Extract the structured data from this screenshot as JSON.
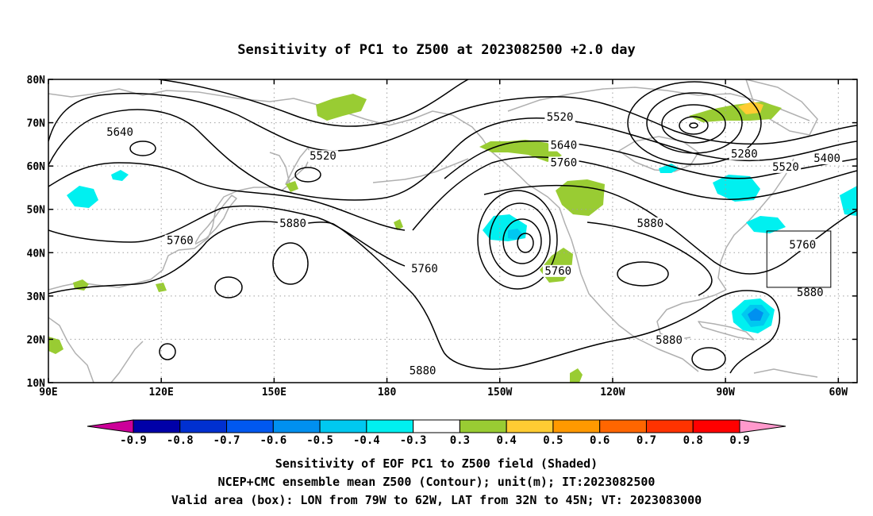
{
  "title": "Sensitivity of PC1 to Z500 at 2023082500 +2.0 day",
  "map": {
    "lon_range": [
      90,
      305
    ],
    "lat_range": [
      10,
      80
    ],
    "lat_ticks": [
      {
        "lat": 80,
        "label": "80N"
      },
      {
        "lat": 70,
        "label": "70N"
      },
      {
        "lat": 60,
        "label": "60N"
      },
      {
        "lat": 50,
        "label": "50N"
      },
      {
        "lat": 40,
        "label": "40N"
      },
      {
        "lat": 30,
        "label": "30N"
      },
      {
        "lat": 20,
        "label": "20N"
      },
      {
        "lat": 10,
        "label": "10N"
      }
    ],
    "lon_ticks": [
      {
        "lon": 90,
        "label": "90E"
      },
      {
        "lon": 120,
        "label": "120E"
      },
      {
        "lon": 150,
        "label": "150E"
      },
      {
        "lon": 180,
        "label": "180"
      },
      {
        "lon": 210,
        "label": "150W"
      },
      {
        "lon": 240,
        "label": "120W"
      },
      {
        "lon": 270,
        "label": "90W"
      },
      {
        "lon": 300,
        "label": "60W"
      }
    ],
    "grid": true,
    "valid_box": {
      "lon_min": 281,
      "lon_max": 298,
      "lat_min": 32,
      "lat_max": 45
    },
    "contour_labels": [
      {
        "text": "5640",
        "lon": 109,
        "lat": 67.5
      },
      {
        "text": "5520",
        "lon": 163,
        "lat": 62
      },
      {
        "text": "5760",
        "lon": 125,
        "lat": 42.5
      },
      {
        "text": "5880",
        "lon": 155,
        "lat": 46.5
      },
      {
        "text": "5760",
        "lon": 190,
        "lat": 36
      },
      {
        "text": "5880",
        "lon": 189.5,
        "lat": 12.5
      },
      {
        "text": "5520",
        "lon": 226,
        "lat": 71
      },
      {
        "text": "5640",
        "lon": 227,
        "lat": 64.5
      },
      {
        "text": "5760",
        "lon": 227,
        "lat": 60.5
      },
      {
        "text": "5760",
        "lon": 225.5,
        "lat": 35.5
      },
      {
        "text": "5880",
        "lon": 250,
        "lat": 46.5
      },
      {
        "text": "5880",
        "lon": 255,
        "lat": 19.5
      },
      {
        "text": "5280",
        "lon": 275,
        "lat": 62.5
      },
      {
        "text": "5520",
        "lon": 286,
        "lat": 59.5
      },
      {
        "text": "5400",
        "lon": 297,
        "lat": 61.5
      },
      {
        "text": "5760",
        "lon": 290.5,
        "lat": 41.5
      },
      {
        "text": "5880",
        "lon": 292.5,
        "lat": 30.5
      }
    ]
  },
  "colorbar": {
    "labels": [
      "-0.9",
      "-0.8",
      "-0.7",
      "-0.6",
      "-0.5",
      "-0.4",
      "-0.3",
      "0.3",
      "0.4",
      "0.5",
      "0.6",
      "0.7",
      "0.8",
      "0.9"
    ],
    "colors": [
      "#0000a8",
      "#0030d0",
      "#0058f0",
      "#0090f0",
      "#00c8f0",
      "#00f0f0",
      "#ffffff",
      "#99cc33",
      "#ffcc33",
      "#ff9900",
      "#ff6600",
      "#ff3300",
      "#ff0000"
    ],
    "low_color": "#cc0099",
    "high_color": "#ff99cc"
  },
  "colors": {
    "coast": "#b0b0b0",
    "grid": "#a0a0a0",
    "pos_shading": "#99cc33",
    "neg_shading": "#00f0f0",
    "neg_strong": "#00c8f0",
    "neg_core": "#0090f0",
    "pos_strong": "#ffcc33"
  },
  "captions": [
    "Sensitivity of EOF PC1 to Z500 field (Shaded)",
    "NCEP+CMC ensemble mean Z500 (Contour); unit(m); IT:2023082500",
    "Valid area (box): LON from 79W to 62W, LAT from 32N to 45N; VT: 2023083000"
  ]
}
